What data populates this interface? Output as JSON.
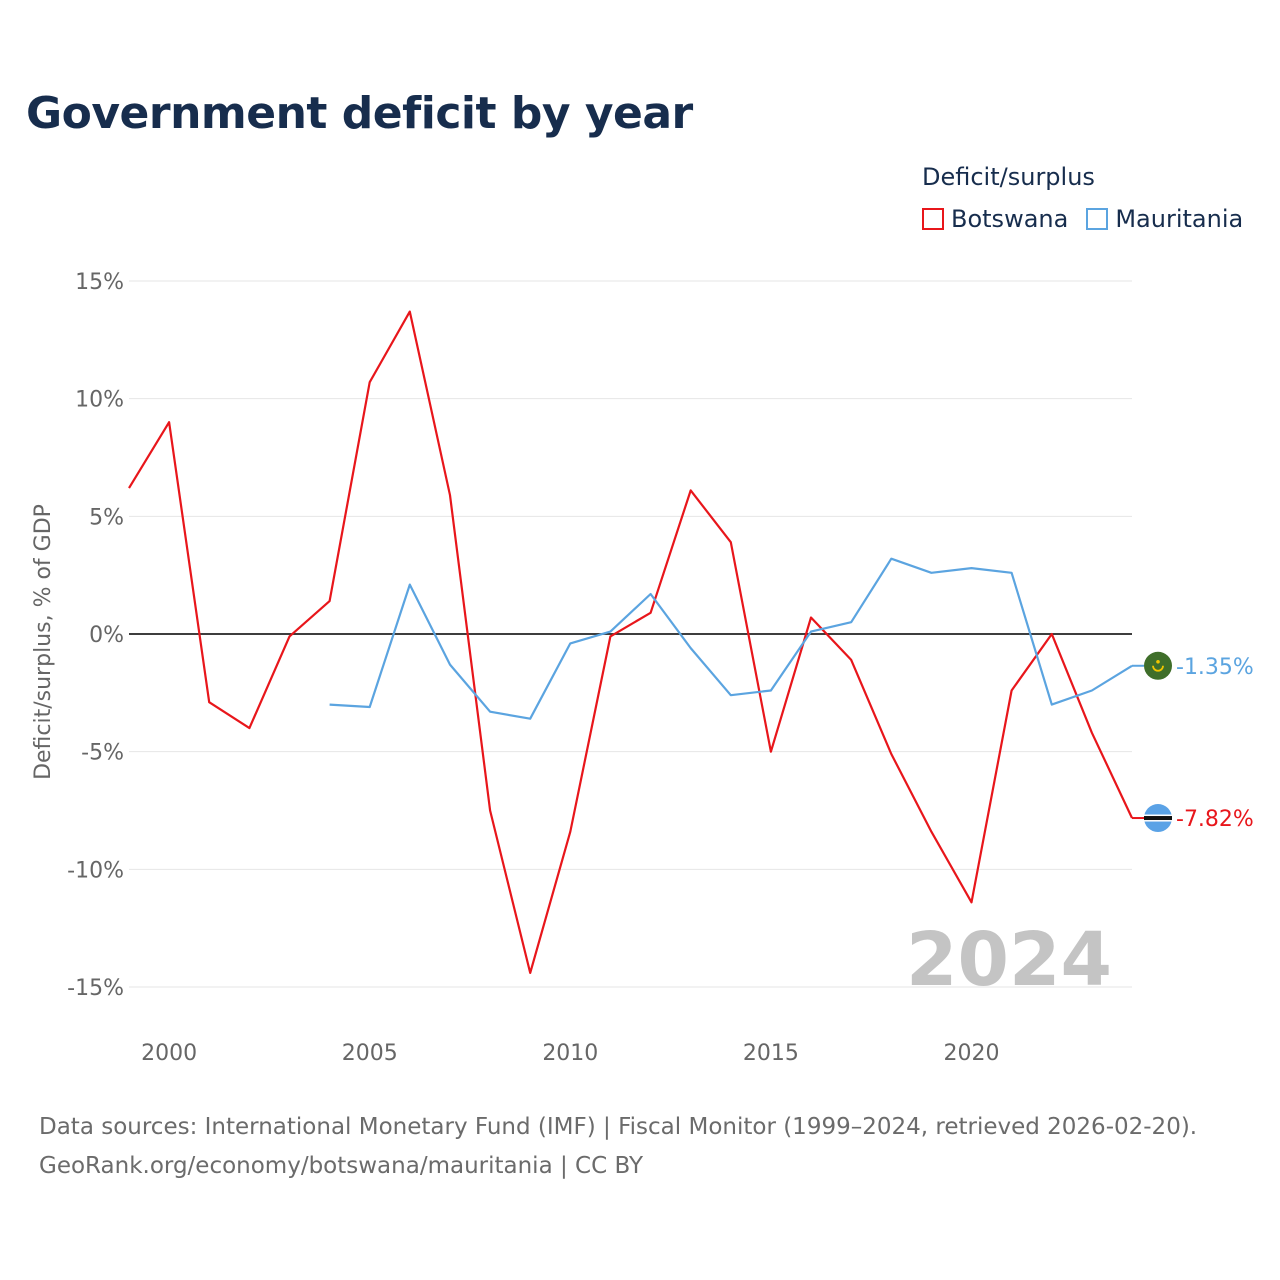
{
  "title": "Government deficit by year",
  "legend": {
    "title": "Deficit/surplus",
    "items": [
      {
        "label": "Botswana",
        "color": "#e8161b"
      },
      {
        "label": "Mauritania",
        "color": "#5ba4e0"
      }
    ]
  },
  "footer": {
    "line1": "Data sources: International Monetary Fund (IMF) | Fiscal Monitor (1999–2024, retrieved 2026-02-20).",
    "line2": "GeoRank.org/economy/botswana/mauritania | CC BY"
  },
  "chart_data": {
    "type": "line",
    "title": "Government deficit by year",
    "xlabel": "",
    "ylabel": "Deficit/surplus, % of GDP",
    "xlim": [
      1999,
      2024
    ],
    "ylim": [
      -15,
      15
    ],
    "x_ticks": [
      2000,
      2005,
      2010,
      2015,
      2020
    ],
    "y_ticks": [
      {
        "value": 15,
        "label": "15%"
      },
      {
        "value": 10,
        "label": "10%"
      },
      {
        "value": 5,
        "label": "5%"
      },
      {
        "value": 0,
        "label": "0%"
      },
      {
        "value": -5,
        "label": "-5%"
      },
      {
        "value": -10,
        "label": "-10%"
      },
      {
        "value": -15,
        "label": "-15%"
      }
    ],
    "grid": true,
    "legend_position": "top-right",
    "watermark_year": "2024",
    "series": [
      {
        "name": "Botswana",
        "color": "#e8161b",
        "end_label": "-7.82%",
        "icon": "botswana-flag-icon",
        "points": [
          [
            1999,
            6.2
          ],
          [
            2000,
            9.0
          ],
          [
            2001,
            -2.9
          ],
          [
            2002,
            -4.0
          ],
          [
            2003,
            -0.1
          ],
          [
            2004,
            1.4
          ],
          [
            2005,
            10.7
          ],
          [
            2006,
            13.7
          ],
          [
            2007,
            5.9
          ],
          [
            2008,
            -7.5
          ],
          [
            2009,
            -14.4
          ],
          [
            2010,
            -8.4
          ],
          [
            2011,
            -0.1
          ],
          [
            2012,
            0.9
          ],
          [
            2013,
            6.1
          ],
          [
            2014,
            3.9
          ],
          [
            2015,
            -5.0
          ],
          [
            2016,
            0.7
          ],
          [
            2017,
            -1.1
          ],
          [
            2018,
            -5.1
          ],
          [
            2019,
            -8.4
          ],
          [
            2020,
            -11.4
          ],
          [
            2021,
            -2.4
          ],
          [
            2022,
            0.0
          ],
          [
            2023,
            -4.2
          ],
          [
            2024,
            -7.82
          ]
        ]
      },
      {
        "name": "Mauritania",
        "color": "#5ba4e0",
        "end_label": "-1.35%",
        "icon": "mauritania-flag-icon",
        "points": [
          [
            2004,
            -3.0
          ],
          [
            2005,
            -3.1
          ],
          [
            2006,
            2.1
          ],
          [
            2007,
            -1.3
          ],
          [
            2008,
            -3.3
          ],
          [
            2009,
            -3.6
          ],
          [
            2010,
            -0.4
          ],
          [
            2011,
            0.1
          ],
          [
            2012,
            1.7
          ],
          [
            2013,
            -0.6
          ],
          [
            2014,
            -2.6
          ],
          [
            2015,
            -2.4
          ],
          [
            2016,
            0.1
          ],
          [
            2017,
            0.5
          ],
          [
            2018,
            3.2
          ],
          [
            2019,
            2.6
          ],
          [
            2020,
            2.8
          ],
          [
            2021,
            2.6
          ],
          [
            2022,
            -3.0
          ],
          [
            2023,
            -2.4
          ],
          [
            2024,
            -1.35
          ]
        ]
      }
    ]
  }
}
